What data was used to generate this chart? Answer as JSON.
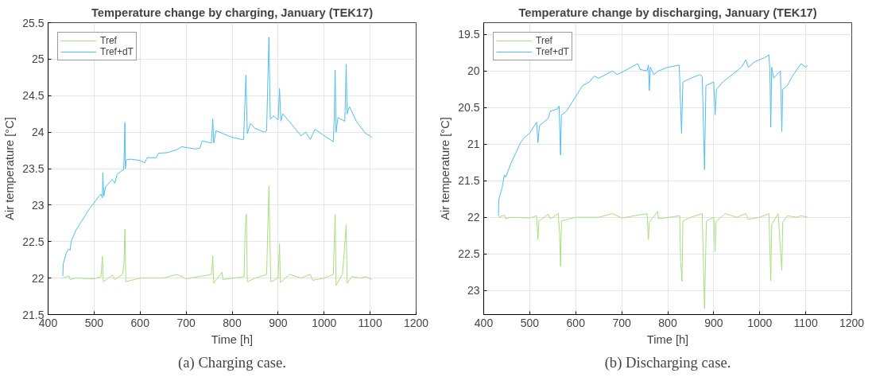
{
  "chart_data": [
    {
      "type": "line",
      "title": "Temperature change by charging, January (TEK17)",
      "xlabel": "Time [h]",
      "ylabel": "Air temperature [°C]",
      "annotations": [
        "(a) Charging case."
      ],
      "xlim": [
        400,
        1200
      ],
      "xticks": [
        400,
        500,
        600,
        700,
        800,
        900,
        1000,
        1100,
        1200
      ],
      "ylim": [
        21.5,
        25.5
      ],
      "yticks": [
        21.5,
        22,
        22.5,
        23,
        23.5,
        24,
        24.5,
        25,
        25.5
      ],
      "grid": true,
      "legend": "top left",
      "marker": "none",
      "line_style": "solid",
      "series": [
        {
          "name": "Tref",
          "color": "#a6e07a",
          "x": [
            432,
            445,
            448,
            460,
            500,
            515,
            518,
            520,
            540,
            545,
            562,
            565,
            567,
            569,
            600,
            650,
            680,
            700,
            755,
            758,
            760,
            778,
            780,
            826,
            828,
            831,
            833,
            850,
            875,
            880,
            884,
            900,
            903,
            905,
            925,
            950,
            970,
            975,
            1000,
            1020,
            1024,
            1026,
            1040,
            1048,
            1050,
            1060,
            1080,
            1090,
            1104
          ],
          "values": [
            22.0,
            22.03,
            21.98,
            22.0,
            21.99,
            22.02,
            22.3,
            21.95,
            22.04,
            21.98,
            22.05,
            22.22,
            22.67,
            21.95,
            22.0,
            22.0,
            22.05,
            21.99,
            22.05,
            22.3,
            21.93,
            22.08,
            21.98,
            22.02,
            22.6,
            22.88,
            21.95,
            22.0,
            22.05,
            23.26,
            21.95,
            22.0,
            22.47,
            21.94,
            22.05,
            22.0,
            22.05,
            21.97,
            22.0,
            22.05,
            22.87,
            21.9,
            22.05,
            22.73,
            21.93,
            22.02,
            22.0,
            22.02,
            21.98
          ]
        },
        {
          "name": "Tref+dT",
          "color": "#4dbeee",
          "x": [
            432,
            433,
            440,
            445,
            448,
            450,
            460,
            470,
            480,
            490,
            500,
            510,
            515,
            518,
            519,
            521,
            525,
            535,
            540,
            545,
            550,
            560,
            564,
            565,
            567,
            568,
            570,
            580,
            600,
            610,
            615,
            635,
            640,
            660,
            680,
            690,
            720,
            730,
            735,
            755,
            758,
            760,
            765,
            780,
            800,
            820,
            825,
            830,
            833,
            840,
            850,
            870,
            875,
            880,
            883,
            890,
            900,
            903,
            906,
            910,
            920,
            930,
            950,
            960,
            970,
            980,
            1000,
            1020,
            1022,
            1024,
            1026,
            1030,
            1045,
            1048,
            1050,
            1055,
            1070,
            1090,
            1100,
            1104
          ],
          "values": [
            22.03,
            22.2,
            22.35,
            22.4,
            22.38,
            22.5,
            22.65,
            22.75,
            22.85,
            22.95,
            23.03,
            23.12,
            23.15,
            23.1,
            23.44,
            23.12,
            23.25,
            23.32,
            23.35,
            23.3,
            23.42,
            23.47,
            23.48,
            23.62,
            24.13,
            23.5,
            23.62,
            23.63,
            23.61,
            23.58,
            23.65,
            23.65,
            23.71,
            23.72,
            23.76,
            23.8,
            23.77,
            23.78,
            23.88,
            23.85,
            24.18,
            23.85,
            24.02,
            23.98,
            23.93,
            23.9,
            23.9,
            24.78,
            23.98,
            24.12,
            24.05,
            24.0,
            24.02,
            25.3,
            24.18,
            24.22,
            24.17,
            24.6,
            24.15,
            24.25,
            24.18,
            24.1,
            23.95,
            24.0,
            23.9,
            24.04,
            23.95,
            23.87,
            24.2,
            24.85,
            24.0,
            24.2,
            24.15,
            24.93,
            24.25,
            24.35,
            24.15,
            23.98,
            23.95,
            23.92
          ]
        }
      ]
    },
    {
      "type": "line",
      "title": "Temperature change by discharging, January (TEK17)",
      "xlabel": "Time [h]",
      "ylabel": "Air temperature [°C]",
      "annotations": [
        "(b) Discharging case."
      ],
      "xlim": [
        400,
        1200
      ],
      "xticks": [
        400,
        500,
        600,
        700,
        800,
        900,
        1000,
        1100,
        1200
      ],
      "ylim": [
        23.33,
        19.34
      ],
      "yticks": [
        19.5,
        20,
        20.5,
        21,
        21.5,
        22,
        22.5,
        23
      ],
      "grid": true,
      "legend": "top left",
      "marker": "none",
      "line_style": "solid",
      "series": [
        {
          "name": "Tref",
          "color": "#a6e07a",
          "x": [
            432,
            445,
            448,
            460,
            500,
            515,
            518,
            520,
            540,
            545,
            562,
            565,
            567,
            569,
            600,
            650,
            680,
            700,
            755,
            758,
            760,
            778,
            780,
            826,
            828,
            831,
            833,
            850,
            875,
            880,
            884,
            900,
            903,
            905,
            925,
            950,
            970,
            975,
            1000,
            1020,
            1024,
            1026,
            1040,
            1048,
            1050,
            1060,
            1080,
            1090,
            1104
          ],
          "values": [
            22.0,
            21.97,
            22.02,
            22.0,
            22.01,
            21.98,
            22.3,
            22.05,
            21.96,
            22.02,
            21.95,
            22.22,
            22.67,
            22.05,
            22.0,
            22.0,
            21.95,
            22.01,
            21.95,
            22.3,
            22.07,
            21.92,
            22.02,
            21.98,
            22.6,
            22.88,
            22.05,
            22.0,
            21.95,
            23.25,
            22.05,
            22.0,
            22.47,
            22.06,
            21.95,
            22.0,
            21.95,
            22.03,
            22.0,
            21.95,
            22.87,
            22.1,
            21.95,
            22.73,
            22.07,
            21.98,
            22.0,
            21.98,
            22.0
          ]
        },
        {
          "name": "Tref+dT",
          "color": "#4dbeee",
          "x": [
            432,
            433,
            440,
            445,
            448,
            460,
            470,
            480,
            490,
            500,
            515,
            518,
            521,
            540,
            545,
            560,
            564,
            567,
            569,
            580,
            600,
            610,
            615,
            630,
            640,
            650,
            680,
            690,
            700,
            720,
            735,
            740,
            755,
            758,
            760,
            762,
            770,
            780,
            800,
            825,
            830,
            833,
            850,
            870,
            875,
            880,
            883,
            900,
            903,
            906,
            920,
            940,
            960,
            970,
            975,
            990,
            1010,
            1020,
            1022,
            1024,
            1026,
            1030,
            1045,
            1048,
            1050,
            1060,
            1070,
            1090,
            1100,
            1104
          ],
          "values": [
            21.98,
            21.75,
            21.6,
            21.42,
            21.45,
            21.25,
            21.12,
            20.98,
            20.9,
            20.85,
            20.7,
            20.98,
            20.75,
            20.65,
            20.55,
            20.52,
            20.48,
            21.15,
            20.6,
            20.55,
            20.35,
            20.25,
            20.2,
            20.15,
            20.07,
            20.1,
            20.0,
            20.05,
            20.02,
            19.95,
            19.9,
            19.98,
            20.0,
            19.92,
            20.27,
            19.95,
            20.05,
            20.0,
            19.95,
            19.92,
            20.85,
            20.15,
            20.1,
            20.05,
            20.08,
            21.35,
            20.2,
            20.15,
            20.6,
            20.25,
            20.15,
            20.05,
            19.95,
            19.85,
            19.95,
            19.87,
            19.82,
            19.78,
            20.0,
            20.77,
            19.95,
            20.1,
            20.0,
            20.83,
            20.25,
            20.2,
            20.08,
            19.9,
            19.95,
            19.92
          ]
        }
      ]
    }
  ]
}
